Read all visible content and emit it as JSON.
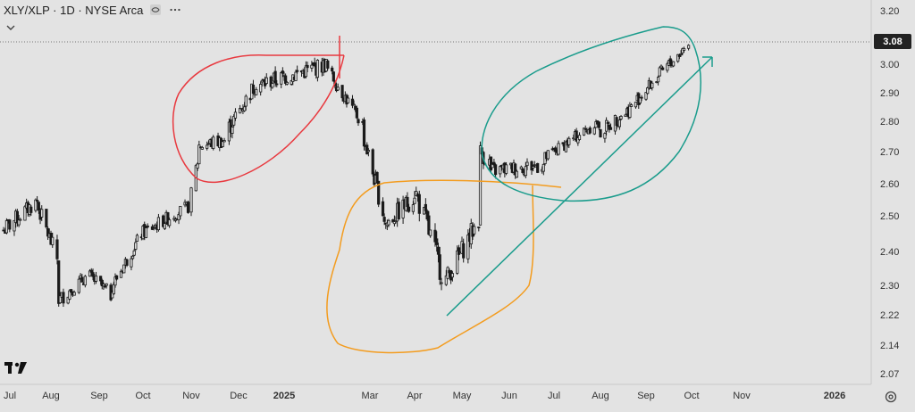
{
  "header": {
    "symbol_title": "XLY/XLP · 1D · NYSE Arca"
  },
  "last_price_label": "3.08",
  "colors": {
    "background": "#e3e3e3",
    "candle": "#1a1a1a",
    "red_annotation": "#e8393f",
    "orange_annotation": "#f39c1f",
    "teal_annotation": "#1a9c8c",
    "price_line": "#777777"
  },
  "icons": [
    "eye-icon",
    "chevron-down-icon",
    "more-icon",
    "tradingview-logo",
    "settings-icon"
  ],
  "chart_data": {
    "type": "candlestick",
    "title": "XLY/XLP · 1D · NYSE Arca",
    "price_ticks": [
      "3.20",
      "3.08",
      "3.00",
      "2.90",
      "2.80",
      "2.70",
      "2.60",
      "2.50",
      "2.40",
      "2.30",
      "2.22",
      "2.14",
      "2.07"
    ],
    "last_price": 3.08,
    "time_ticks": [
      "Jul",
      "Aug",
      "Sep",
      "Oct",
      "Nov",
      "Dec",
      "2025",
      "Mar",
      "Apr",
      "May",
      "Jun",
      "Jul",
      "Aug",
      "Sep",
      "Oct",
      "Nov",
      "2026"
    ],
    "time_tick_bold": [
      "2025",
      "2026"
    ],
    "series": [
      {
        "start": "2024-07-01",
        "end": "2024-07-24",
        "from": 2.46,
        "to": 2.55,
        "vol": 0.025
      },
      {
        "start": "2024-07-24",
        "end": "2024-08-05",
        "from": 2.52,
        "to": 2.38,
        "vol": 0.025
      },
      {
        "start": "2024-08-05",
        "end": "2024-08-06",
        "from": 2.38,
        "to": 2.16,
        "vol": 0.03
      },
      {
        "start": "2024-08-06",
        "end": "2024-08-25",
        "from": 2.26,
        "to": 2.33,
        "vol": 0.02
      },
      {
        "start": "2024-08-25",
        "end": "2024-09-10",
        "from": 2.33,
        "to": 2.27,
        "vol": 0.02
      },
      {
        "start": "2024-09-10",
        "end": "2024-09-30",
        "from": 2.3,
        "to": 2.45,
        "vol": 0.02
      },
      {
        "start": "2024-09-30",
        "end": "2024-10-31",
        "from": 2.45,
        "to": 2.53,
        "vol": 0.02
      },
      {
        "start": "2024-11-01",
        "end": "2024-11-06",
        "from": 2.56,
        "to": 2.7,
        "vol": 0.03
      },
      {
        "start": "2024-11-06",
        "end": "2024-11-25",
        "from": 2.72,
        "to": 2.74,
        "vol": 0.025
      },
      {
        "start": "2024-11-25",
        "end": "2024-12-16",
        "from": 2.78,
        "to": 2.96,
        "vol": 0.03
      },
      {
        "start": "2024-12-16",
        "end": "2025-01-31",
        "from": 2.93,
        "to": 3.0,
        "vol": 0.03
      },
      {
        "start": "2025-01-31",
        "end": "2025-02-25",
        "from": 2.98,
        "to": 2.78,
        "vol": 0.025
      },
      {
        "start": "2025-02-25",
        "end": "2025-03-13",
        "from": 2.74,
        "to": 2.46,
        "vol": 0.03
      },
      {
        "start": "2025-03-13",
        "end": "2025-04-01",
        "from": 2.48,
        "to": 2.56,
        "vol": 0.03
      },
      {
        "start": "2025-04-01",
        "end": "2025-04-21",
        "from": 2.58,
        "to": 2.3,
        "vol": 0.04
      },
      {
        "start": "2025-04-21",
        "end": "2025-05-13",
        "from": 2.32,
        "to": 2.5,
        "vol": 0.03
      },
      {
        "start": "2025-05-13",
        "end": "2025-05-20",
        "from": 2.7,
        "to": 2.66,
        "vol": 0.03
      },
      {
        "start": "2025-05-20",
        "end": "2025-06-25",
        "from": 2.64,
        "to": 2.66,
        "vol": 0.025
      },
      {
        "start": "2025-06-25",
        "end": "2025-07-31",
        "from": 2.68,
        "to": 2.8,
        "vol": 0.02
      },
      {
        "start": "2025-07-31",
        "end": "2025-08-25",
        "from": 2.76,
        "to": 2.86,
        "vol": 0.025
      },
      {
        "start": "2025-08-25",
        "end": "2025-09-30",
        "from": 2.87,
        "to": 3.08,
        "vol": 0.025
      }
    ]
  }
}
